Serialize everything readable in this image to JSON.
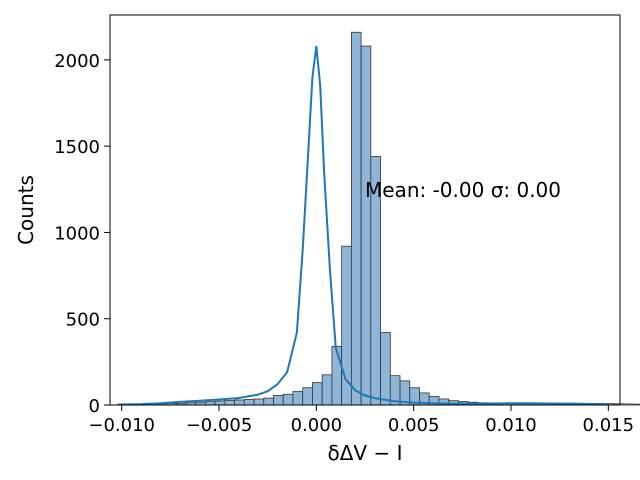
{
  "chart_data": {
    "type": "bar",
    "xlabel": "δΔV − I",
    "ylabel": "Counts",
    "xlim": [
      -0.0106,
      0.0156
    ],
    "ylim": [
      0,
      2260
    ],
    "xticks": [
      -0.01,
      -0.005,
      0.0,
      0.005,
      0.01,
      0.015
    ],
    "xtick_labels": [
      "−0.010",
      "−0.005",
      "0.000",
      "0.005",
      "0.010",
      "0.015"
    ],
    "yticks": [
      0,
      500,
      1000,
      1500,
      2000
    ],
    "ytick_labels": [
      "0",
      "500",
      "1000",
      "1500",
      "2000"
    ],
    "grid": false,
    "annotation": "Mean: -0.00 σ: 0.00",
    "bar_color": "#8fb6d8",
    "edge_color": "#333333",
    "kde_color": "#1f77b4",
    "bin_start": -0.0102,
    "bin_width": 0.0005,
    "values": [
      2,
      3,
      4,
      6,
      7,
      9,
      10,
      13,
      16,
      19,
      23,
      26,
      29,
      32,
      35,
      40,
      55,
      62,
      78,
      100,
      130,
      175,
      340,
      920,
      2160,
      2080,
      1440,
      420,
      170,
      140,
      100,
      70,
      50,
      35,
      25,
      20,
      16,
      13,
      11,
      10,
      9,
      8,
      8,
      8,
      9,
      9,
      10,
      10,
      9,
      9,
      8,
      7,
      6,
      5,
      4
    ],
    "kde": {
      "x": [
        -0.0102,
        -0.009,
        -0.008,
        -0.007,
        -0.006,
        -0.005,
        -0.004,
        -0.003,
        -0.0025,
        -0.002,
        -0.0015,
        -0.001,
        -0.0007,
        -0.0004,
        -0.0002,
        0.0,
        0.0002,
        0.0004,
        0.0007,
        0.001,
        0.0015,
        0.002,
        0.0025,
        0.003,
        0.004,
        0.005,
        0.006,
        0.007,
        0.008,
        0.009,
        0.01,
        0.011,
        0.012,
        0.013,
        0.014,
        0.015
      ],
      "y": [
        3,
        5,
        10,
        18,
        25,
        32,
        40,
        60,
        80,
        120,
        190,
        420,
        900,
        1500,
        1900,
        2080,
        1850,
        1350,
        780,
        330,
        150,
        85,
        55,
        40,
        22,
        14,
        10,
        8,
        8,
        9,
        10,
        10,
        9,
        8,
        6,
        4
      ]
    }
  }
}
